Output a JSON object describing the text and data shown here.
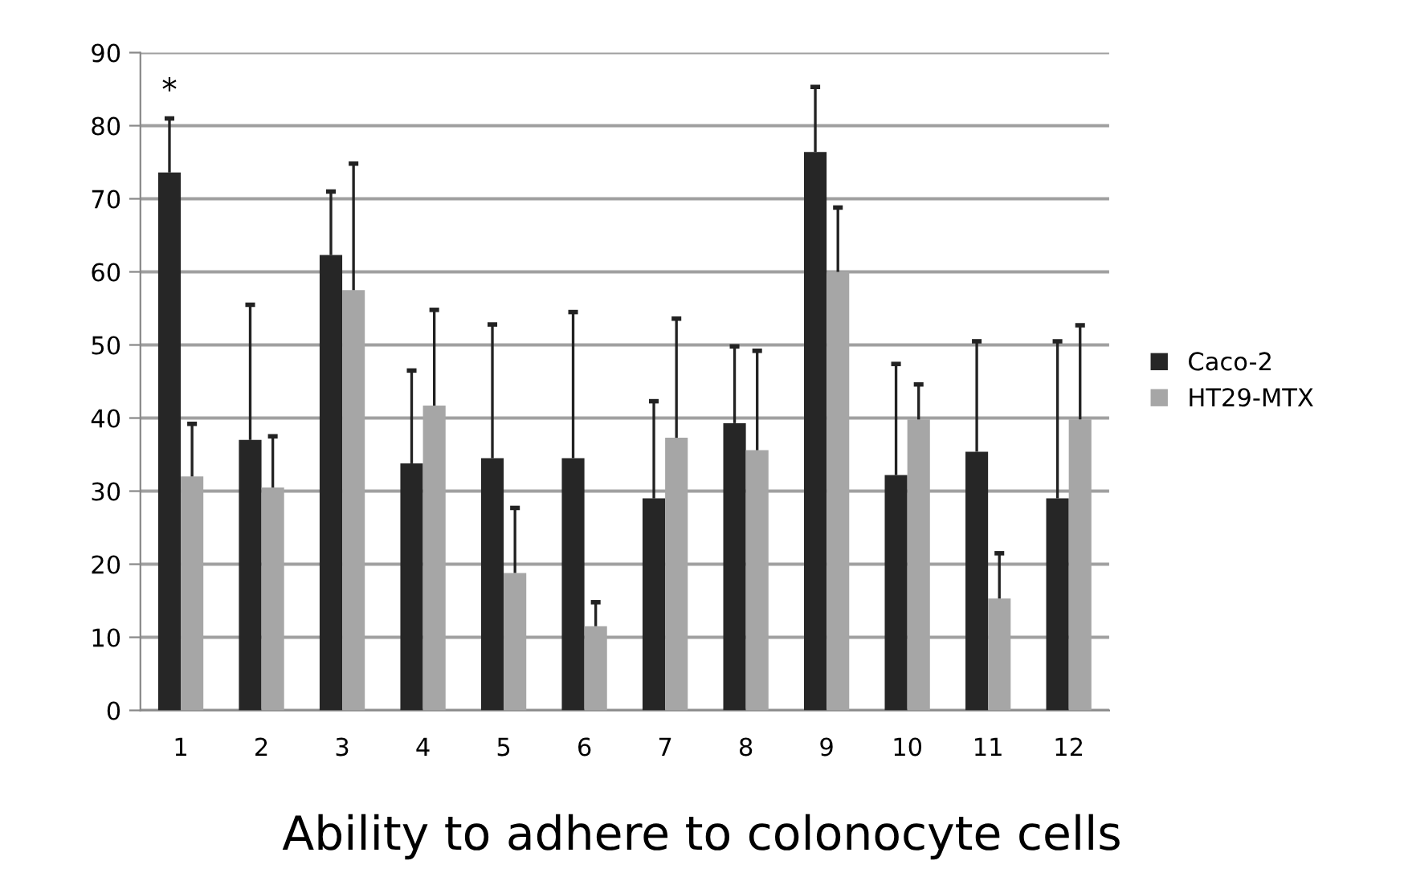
{
  "chart_data": {
    "type": "bar",
    "title": "Ability to adhere to colonocyte cells",
    "categories": [
      "1",
      "2",
      "3",
      "4",
      "5",
      "6",
      "7",
      "8",
      "9",
      "10",
      "11",
      "12"
    ],
    "series": [
      {
        "name": "Caco-2",
        "color": "#262626",
        "values": [
          73.6,
          37,
          62.3,
          33.8,
          34.5,
          34.5,
          29,
          39.3,
          76.4,
          32.2,
          35.4,
          29
        ],
        "errors": [
          [
            73.6,
            81
          ],
          [
            37,
            55.5
          ],
          [
            62.3,
            71
          ],
          [
            33.8,
            46.5
          ],
          [
            34.5,
            52.8
          ],
          [
            34.5,
            54.5
          ],
          [
            29,
            42.3
          ],
          [
            39.3,
            49.8
          ],
          [
            76.4,
            85.3
          ],
          [
            32.2,
            47.4
          ],
          [
            35.4,
            50.5
          ],
          [
            29,
            50.5
          ]
        ]
      },
      {
        "name": "HT29-MTX",
        "color": "#a6a6a6",
        "values": [
          32,
          30.5,
          57.5,
          41.7,
          18.8,
          11.5,
          37.3,
          35.6,
          60,
          39.8,
          15.3,
          39.8
        ],
        "errors": [
          [
            32,
            39.2
          ],
          [
            30.5,
            37.5
          ],
          [
            57.5,
            74.8
          ],
          [
            41.7,
            54.8
          ],
          [
            18.8,
            27.7
          ],
          [
            11.5,
            14.8
          ],
          [
            37.3,
            53.6
          ],
          [
            35.6,
            49.2
          ],
          [
            60,
            68.8
          ],
          [
            39.8,
            44.6
          ],
          [
            15.3,
            21.5
          ],
          [
            39.8,
            52.7
          ]
        ]
      }
    ],
    "annotations": [
      {
        "text": "*",
        "x": "1",
        "y": 81
      }
    ],
    "ylim": [
      0,
      90
    ],
    "yticks": [
      0,
      10,
      20,
      30,
      40,
      50,
      60,
      70,
      80,
      90
    ],
    "grid": "y",
    "legend": "right"
  }
}
